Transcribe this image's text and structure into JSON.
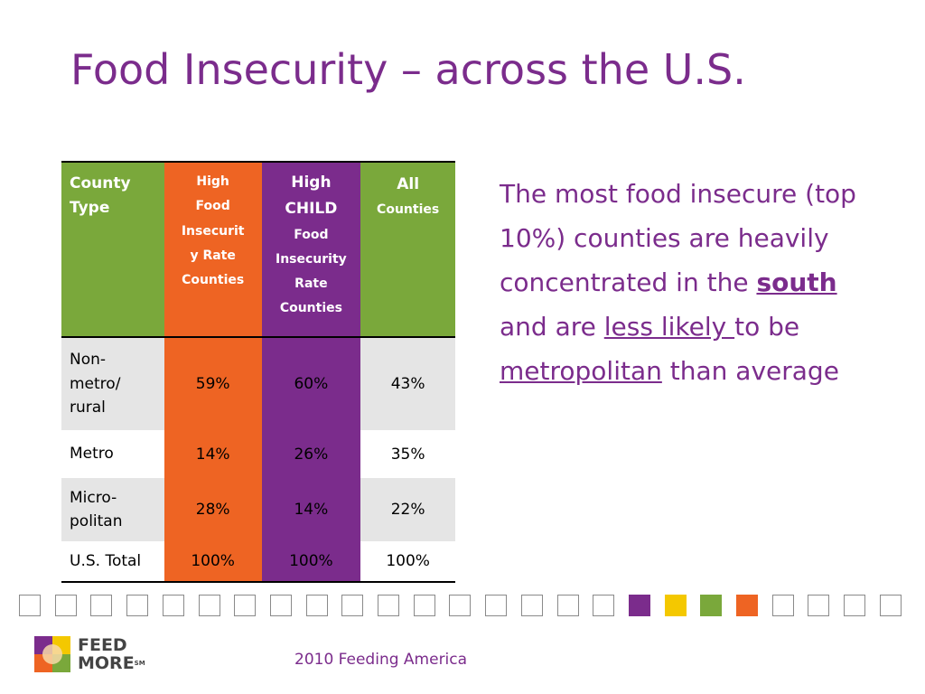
{
  "title": "Food Insecurity – across the U.S.",
  "table": {
    "headers": {
      "county_type": [
        "County",
        "Type"
      ],
      "high_food": [
        "High",
        "Food",
        "Insecurit",
        "y Rate",
        "Counties"
      ],
      "high_child_top": [
        "High",
        "CHILD"
      ],
      "high_child_rest": [
        "Food",
        "Insecurity",
        "Rate",
        "Counties"
      ],
      "all_top": "All",
      "all_rest": "Counties"
    },
    "rows": [
      {
        "label": [
          "Non-",
          "metro/",
          "rural"
        ],
        "high_food": "59%",
        "high_child": "60%",
        "all": "43%"
      },
      {
        "label": [
          "Metro"
        ],
        "high_food": "14%",
        "high_child": "26%",
        "all": "35%"
      },
      {
        "label": [
          "Micro-",
          "politan"
        ],
        "high_food": "28%",
        "high_child": "14%",
        "all": "22%"
      },
      {
        "label": [
          "U.S. Total"
        ],
        "high_food": "100%",
        "high_child": "100%",
        "all": "100%"
      }
    ]
  },
  "side_text": {
    "p1": "The most food insecure (top 10%) counties are heavily concentrated in the ",
    "south": "south",
    "p2": " and are ",
    "less_likely": "less likely ",
    "p3": "to be ",
    "metropolitan": "metropolitan",
    "p4": " than average"
  },
  "footer": "2010 Feeding America",
  "logo": {
    "line1": "FEED",
    "line2": "MORE",
    "mark": "SM"
  },
  "colors": {
    "purple": "#7b2c8c",
    "orange": "#ee6423",
    "green": "#7aa83b",
    "yellow": "#f4c800"
  },
  "squares": [
    "empty",
    "empty",
    "empty",
    "empty",
    "empty",
    "empty",
    "empty",
    "empty",
    "empty",
    "empty",
    "empty",
    "empty",
    "empty",
    "empty",
    "empty",
    "empty",
    "empty",
    "purple",
    "yellow",
    "green",
    "orange",
    "empty",
    "empty",
    "empty",
    "empty"
  ]
}
